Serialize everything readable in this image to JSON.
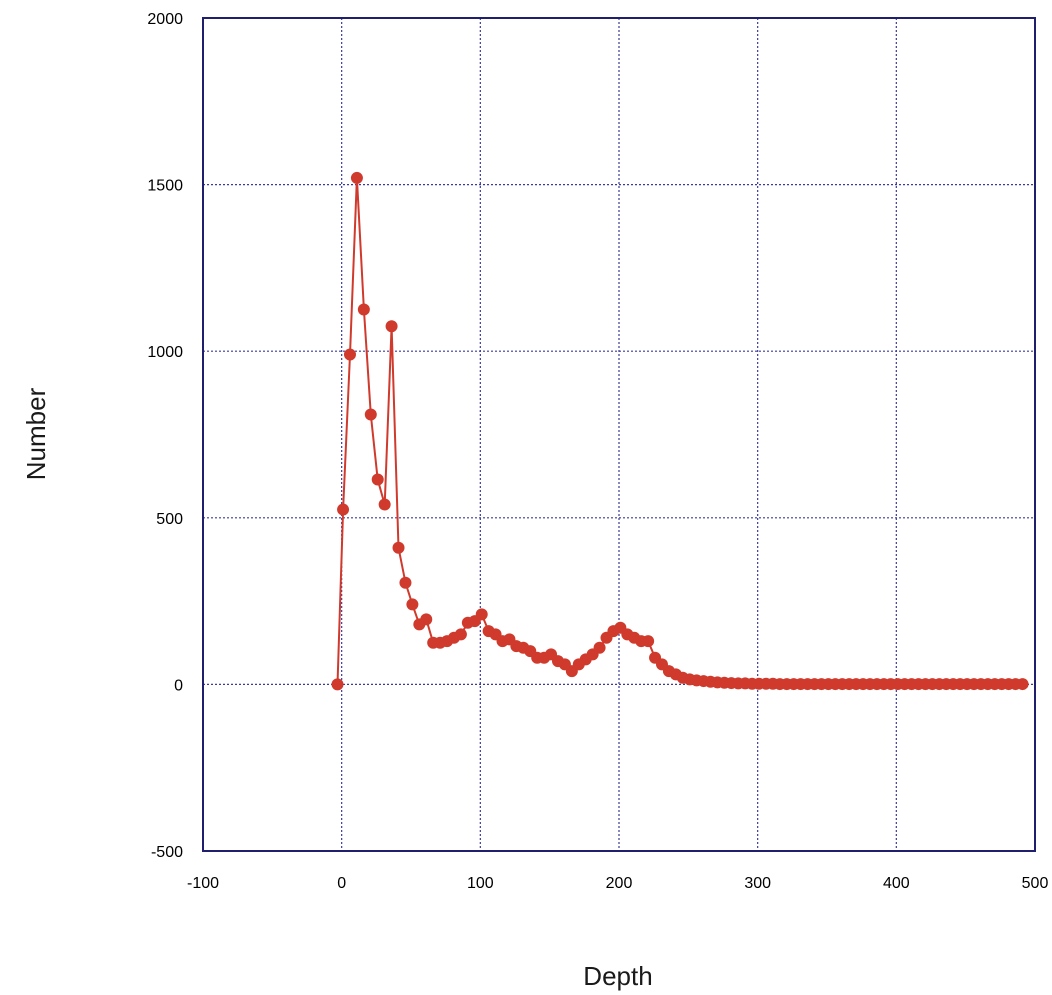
{
  "chart_data": {
    "type": "line",
    "xlabel": "Depth",
    "ylabel": "Number",
    "xlim": [
      -100,
      500
    ],
    "ylim": [
      -500,
      2000
    ],
    "xticks": [
      -100,
      0,
      100,
      200,
      300,
      400,
      500
    ],
    "yticks": [
      -500,
      0,
      500,
      1000,
      1500,
      2000
    ],
    "grid": true,
    "series": [
      {
        "color": "#d03a2c",
        "marker": "circle",
        "x": [
          -3,
          1,
          6,
          11,
          16,
          21,
          26,
          31,
          36,
          41,
          46,
          51,
          56,
          61,
          66,
          71,
          76,
          81,
          86,
          91,
          96,
          101,
          106,
          111,
          116,
          121,
          126,
          131,
          136,
          141,
          146,
          151,
          156,
          161,
          166,
          171,
          176,
          181,
          186,
          191,
          196,
          201,
          206,
          211,
          216,
          221,
          226,
          231,
          236,
          241,
          246,
          251,
          256,
          261,
          266,
          271,
          276,
          281,
          286,
          291,
          296,
          301,
          306,
          311,
          316,
          321,
          326,
          331,
          336,
          341,
          346,
          351,
          356,
          361,
          366,
          371,
          376,
          381,
          386,
          391,
          396,
          401,
          406,
          411,
          416,
          421,
          426,
          431,
          436,
          441,
          446,
          451,
          456,
          461,
          466,
          471,
          476,
          481,
          486,
          491
        ],
        "y": [
          0,
          525,
          990,
          1520,
          1125,
          810,
          615,
          540,
          1075,
          410,
          305,
          240,
          180,
          195,
          125,
          125,
          130,
          140,
          150,
          185,
          190,
          210,
          160,
          150,
          130,
          135,
          115,
          110,
          100,
          80,
          80,
          90,
          70,
          60,
          40,
          60,
          75,
          90,
          110,
          140,
          160,
          170,
          150,
          140,
          130,
          130,
          80,
          60,
          40,
          30,
          20,
          15,
          12,
          10,
          8,
          6,
          5,
          4,
          3,
          3,
          2,
          2,
          2,
          2,
          1,
          1,
          1,
          1,
          1,
          1,
          1,
          1,
          1,
          1,
          1,
          1,
          1,
          1,
          1,
          1,
          1,
          1,
          1,
          1,
          1,
          1,
          1,
          1,
          1,
          1,
          1,
          1,
          1,
          1,
          1,
          1,
          1,
          1,
          1,
          1
        ]
      }
    ]
  }
}
